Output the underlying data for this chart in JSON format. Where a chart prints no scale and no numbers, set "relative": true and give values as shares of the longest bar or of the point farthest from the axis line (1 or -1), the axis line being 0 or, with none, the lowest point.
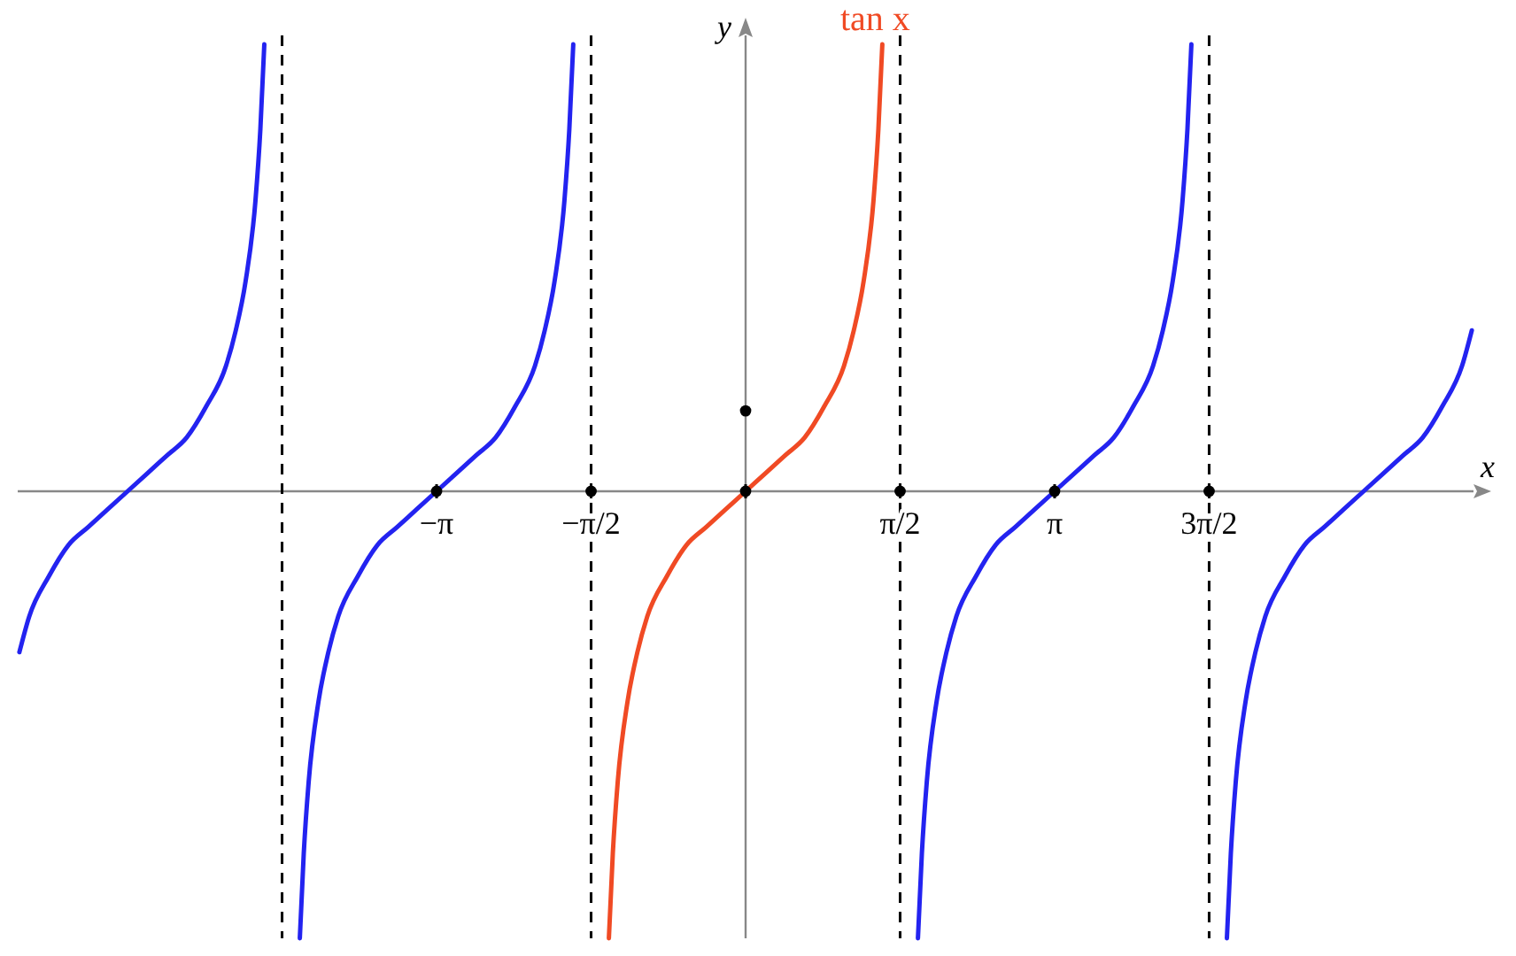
{
  "chart_data": {
    "type": "line",
    "relative": true,
    "xlabel": "x",
    "xlim": [
      -7.4,
      7.4
    ],
    "xticks": [
      {
        "value": -3.1416,
        "label": "−π"
      },
      {
        "value": -1.5708,
        "label": "−π/2"
      },
      {
        "value": 0,
        "label": null
      },
      {
        "value": 1.5708,
        "label": "π/2"
      },
      {
        "value": 3.1416,
        "label": "π"
      },
      {
        "value": 4.7124,
        "label": "3π/2"
      }
    ],
    "ref_lines": [
      {
        "axis": "x",
        "value": 0,
        "line_style": "solid",
        "color": "#888888"
      },
      {
        "axis": "x",
        "value": -4.7124,
        "line_style": "dashed",
        "color": "#000000"
      },
      {
        "axis": "x",
        "value": -1.5708,
        "line_style": "dashed",
        "color": "#000000"
      },
      {
        "axis": "x",
        "value": 1.5708,
        "line_style": "dashed",
        "color": "#000000"
      },
      {
        "axis": "x",
        "value": 4.7124,
        "line_style": "dashed",
        "color": "#000000"
      }
    ],
    "grid": false,
    "legend": false,
    "line_style": "solid",
    "annotations": [
      "y"
    ],
    "series": [
      {
        "color": "#2323f0",
        "x": [
          -7.383,
          -7.283,
          -7.083,
          -6.883,
          -6.683,
          -6.483,
          -6.283,
          -6.083,
          -5.883,
          -5.683,
          -5.483,
          -5.283,
          -5.183,
          -5.083,
          -4.983,
          -4.933,
          -4.893
        ],
        "values": [
          -0.36,
          -0.28,
          -0.19,
          -0.12,
          -0.08,
          -0.04,
          0,
          0.04,
          0.08,
          0.12,
          0.19,
          0.28,
          0.36,
          0.47,
          0.65,
          0.81,
          1
        ]
      },
      {
        "color": "#2323f0",
        "x": [
          -4.532,
          -4.492,
          -4.442,
          -4.342,
          -4.242,
          -4.142,
          -3.942,
          -3.742,
          -3.542,
          -3.342,
          -3.142,
          -2.942,
          -2.742,
          -2.542,
          -2.342,
          -2.142,
          -2.042,
          -1.942,
          -1.842,
          -1.792,
          -1.752
        ],
        "values": [
          -1,
          -0.81,
          -0.65,
          -0.47,
          -0.36,
          -0.28,
          -0.19,
          -0.12,
          -0.08,
          -0.04,
          0,
          0.04,
          0.08,
          0.12,
          0.19,
          0.28,
          0.36,
          0.47,
          0.65,
          0.81,
          1
        ]
      },
      {
        "name": "tan x",
        "color": "#f04a24",
        "x": [
          -1.39,
          -1.35,
          -1.3,
          -1.2,
          -1.1,
          -1,
          -0.8,
          -0.6,
          -0.4,
          -0.2,
          0,
          0.2,
          0.4,
          0.6,
          0.8,
          1,
          1.1,
          1.2,
          1.3,
          1.35,
          1.39
        ],
        "values": [
          -1,
          -0.81,
          -0.65,
          -0.47,
          -0.36,
          -0.28,
          -0.19,
          -0.12,
          -0.08,
          -0.04,
          0,
          0.04,
          0.08,
          0.12,
          0.19,
          0.28,
          0.36,
          0.47,
          0.65,
          0.81,
          1
        ]
      },
      {
        "color": "#2323f0",
        "x": [
          1.752,
          1.792,
          1.842,
          1.942,
          2.042,
          2.142,
          2.342,
          2.542,
          2.742,
          2.942,
          3.142,
          3.342,
          3.542,
          3.742,
          3.942,
          4.142,
          4.242,
          4.342,
          4.442,
          4.492,
          4.532
        ],
        "values": [
          -1,
          -0.81,
          -0.65,
          -0.47,
          -0.36,
          -0.28,
          -0.19,
          -0.12,
          -0.08,
          -0.04,
          0,
          0.04,
          0.08,
          0.12,
          0.19,
          0.28,
          0.36,
          0.47,
          0.65,
          0.81,
          1
        ]
      },
      {
        "color": "#2323f0",
        "x": [
          4.893,
          4.933,
          4.983,
          5.083,
          5.183,
          5.283,
          5.483,
          5.683,
          5.883,
          6.083,
          6.283,
          6.483,
          6.683,
          6.883,
          7.083,
          7.283,
          7.383
        ],
        "values": [
          -1,
          -0.81,
          -0.65,
          -0.47,
          -0.36,
          -0.28,
          -0.19,
          -0.12,
          -0.08,
          -0.04,
          0,
          0.04,
          0.08,
          0.12,
          0.19,
          0.28,
          0.36
        ]
      },
      {
        "type": "scatter",
        "marker": "circle",
        "color": "#000000",
        "x": [
          0
        ],
        "values": [
          0.18
        ]
      },
      {
        "type": "scatter",
        "marker": "circle",
        "color": "#000000",
        "x": [
          -3.1416,
          -1.5708,
          0,
          1.5708,
          3.1416,
          4.7124
        ],
        "values": [
          0,
          0,
          0,
          0,
          0,
          0
        ]
      }
    ]
  }
}
